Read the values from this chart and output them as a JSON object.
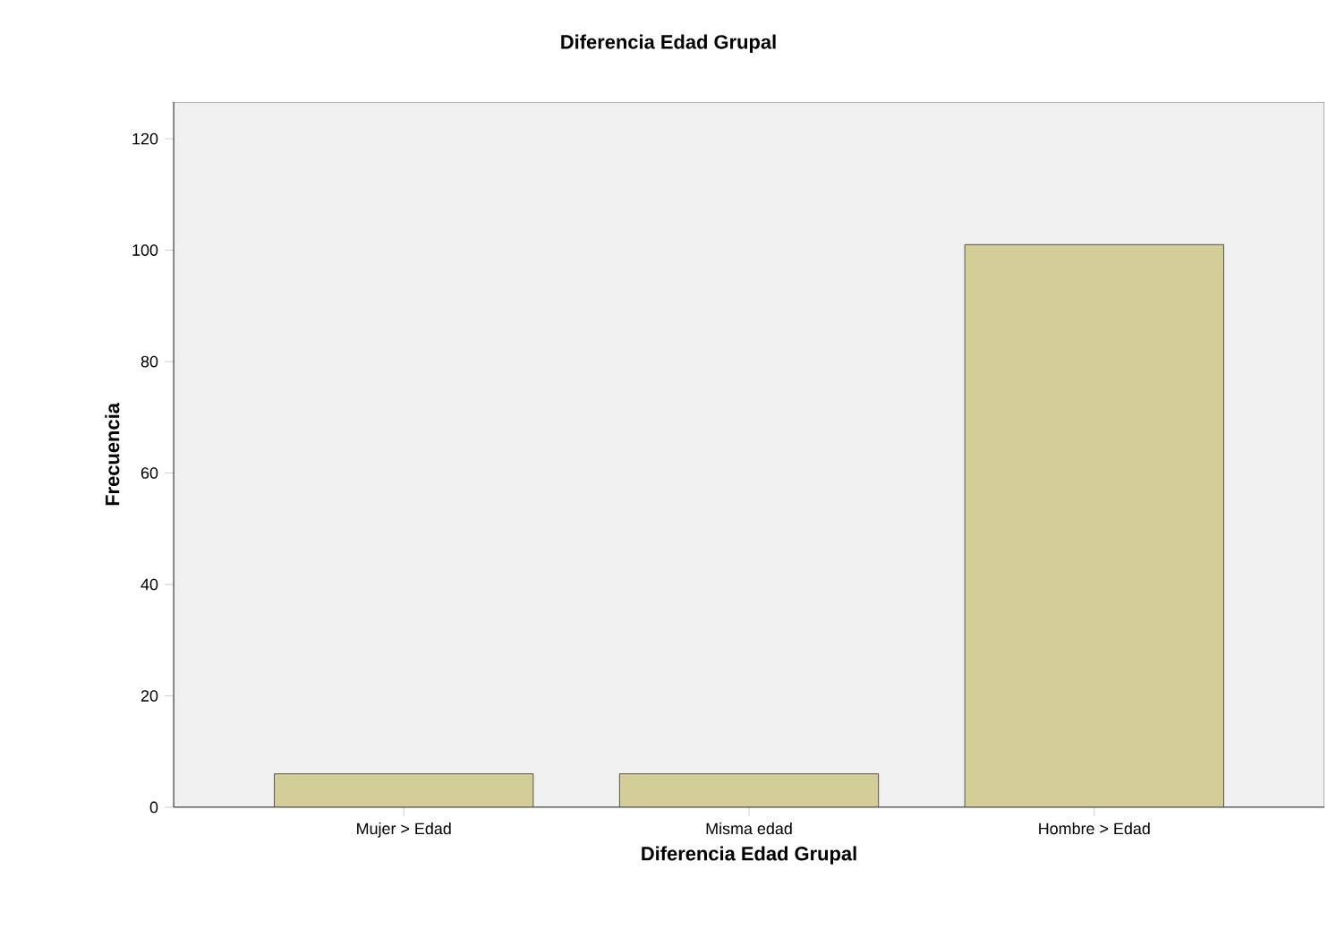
{
  "chart_data": {
    "type": "bar",
    "title": "Diferencia Edad Grupal",
    "xlabel": "Diferencia Edad Grupal",
    "ylabel": "Frecuencia",
    "categories": [
      "Mujer > Edad",
      "Misma edad",
      "Hombre > Edad"
    ],
    "values": [
      6,
      6,
      101
    ],
    "color": "#d3cd97",
    "ylim": [
      0,
      126.6
    ],
    "yticks": [
      0,
      20,
      40,
      60,
      80,
      100,
      120
    ],
    "grid": false
  }
}
